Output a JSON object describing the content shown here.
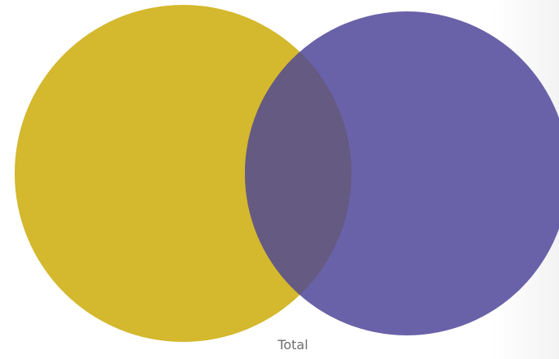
{
  "diagram": {
    "caption": "Total",
    "sets": [
      {
        "color": "#d4b82e"
      },
      {
        "color": "#6a62a8"
      }
    ],
    "overlap_color": "#645a82"
  }
}
